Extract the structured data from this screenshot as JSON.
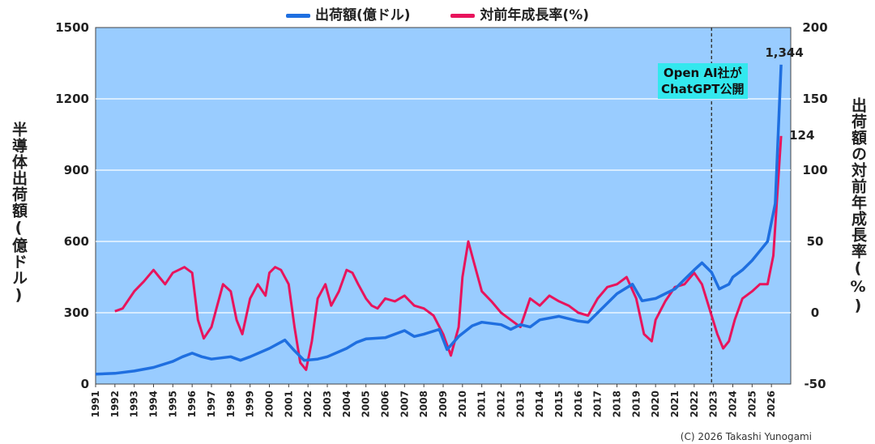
{
  "legend": {
    "series1": "出荷額(億ドル)",
    "series2": "対前年成長率(%)"
  },
  "axes": {
    "left_label": "半導体出荷額(億ドル)",
    "right_label": "出荷額の対前年成長率(%)"
  },
  "annotation": {
    "line1": "Open AI社が",
    "line2": "ChatGPT公開"
  },
  "credit": "(C) 2026 Takashi Yunogami",
  "colors": {
    "plot_bg": "#99ccff",
    "shipments": "#1f6fe0",
    "growth": "#e8145c",
    "neg_tick": "#e01010",
    "annotation_bg": "#33e8ee"
  },
  "chart_data": {
    "type": "line",
    "x_ticks": [
      "1991",
      "1992",
      "1993",
      "1994",
      "1995",
      "1996",
      "1997",
      "1998",
      "1999",
      "2000",
      "2001",
      "2002",
      "2003",
      "2004",
      "2005",
      "2006",
      "2007",
      "2008",
      "2009",
      "2010",
      "2011",
      "2012",
      "2013",
      "2014",
      "2015",
      "2016",
      "2017",
      "2018",
      "2019",
      "2020",
      "2021",
      "2022",
      "2023",
      "2024",
      "2025",
      "2026"
    ],
    "xlim": [
      1991,
      2027
    ],
    "y_left": {
      "ticks": [
        "0",
        "300",
        "600",
        "900",
        "1200",
        "1500"
      ],
      "ylim": [
        0,
        1500
      ]
    },
    "y_right": {
      "ticks": [
        "-50",
        "0",
        "50",
        "100",
        "150",
        "200"
      ],
      "ylim": [
        -50,
        200
      ]
    },
    "vertical_marker_year": 2022.9,
    "series": [
      {
        "name": "出荷額(億ドル)",
        "axis": "left",
        "x": [
          1991,
          1992,
          1993,
          1994,
          1995,
          1995.5,
          1996,
          1996.5,
          1997,
          1998,
          1998.5,
          1999,
          2000,
          2000.8,
          2001.3,
          2001.8,
          2002.5,
          2003,
          2004,
          2004.5,
          2005,
          2006,
          2007,
          2007.5,
          2008,
          2008.8,
          2009.2,
          2009.8,
          2010.5,
          2011,
          2012,
          2012.5,
          2013,
          2013.5,
          2014,
          2015,
          2016,
          2016.5,
          2017,
          2018,
          2018.8,
          2019.3,
          2020,
          2020.5,
          2021,
          2021.5,
          2022,
          2022.4,
          2022.9,
          2023.3,
          2023.8,
          2024,
          2024.5,
          2025,
          2025.4,
          2025.8,
          2026.2,
          2026.5
        ],
        "values": [
          42,
          45,
          55,
          70,
          95,
          115,
          130,
          115,
          105,
          115,
          100,
          115,
          150,
          185,
          140,
          100,
          105,
          115,
          150,
          175,
          190,
          195,
          225,
          200,
          210,
          230,
          145,
          200,
          245,
          260,
          250,
          230,
          250,
          240,
          270,
          285,
          265,
          260,
          300,
          380,
          420,
          350,
          360,
          380,
          400,
          440,
          480,
          510,
          470,
          400,
          420,
          450,
          480,
          520,
          560,
          600,
          760,
          1344
        ]
      },
      {
        "name": "対前年成長率(%)",
        "axis": "right",
        "x": [
          1992,
          1992.4,
          1993,
          1993.5,
          1994,
          1994.3,
          1994.6,
          1995,
          1995.3,
          1995.6,
          1996,
          1996.3,
          1996.6,
          1997,
          1997.3,
          1997.6,
          1998,
          1998.3,
          1998.6,
          1999,
          1999.4,
          1999.8,
          2000,
          2000.3,
          2000.6,
          2001,
          2001.3,
          2001.6,
          2001.9,
          2002.2,
          2002.5,
          2002.9,
          2003.2,
          2003.6,
          2004,
          2004.3,
          2004.6,
          2005,
          2005.3,
          2005.6,
          2006,
          2006.5,
          2007,
          2007.5,
          2008,
          2008.5,
          2009,
          2009.4,
          2009.8,
          2010,
          2010.3,
          2010.6,
          2011,
          2011.5,
          2012,
          2012.5,
          2013,
          2013.5,
          2014,
          2014.5,
          2015,
          2015.5,
          2016,
          2016.5,
          2017,
          2017.5,
          2018,
          2018.5,
          2019,
          2019.4,
          2019.8,
          2020,
          2020.5,
          2021,
          2021.5,
          2022,
          2022.4,
          2022.9,
          2023.2,
          2023.5,
          2023.8,
          2024.1,
          2024.5,
          2025,
          2025.4,
          2025.8,
          2026.1,
          2026.5
        ],
        "values": [
          1,
          3,
          15,
          22,
          30,
          25,
          20,
          28,
          30,
          32,
          28,
          -5,
          -18,
          -10,
          5,
          20,
          15,
          -5,
          -15,
          10,
          20,
          12,
          28,
          32,
          30,
          20,
          -10,
          -35,
          -40,
          -20,
          10,
          20,
          5,
          15,
          30,
          28,
          20,
          10,
          5,
          3,
          10,
          8,
          12,
          5,
          3,
          -2,
          -15,
          -30,
          -10,
          25,
          50,
          35,
          15,
          8,
          0,
          -5,
          -10,
          10,
          5,
          12,
          8,
          5,
          0,
          -2,
          10,
          18,
          20,
          25,
          10,
          -15,
          -20,
          -5,
          8,
          18,
          20,
          28,
          20,
          -2,
          -15,
          -25,
          -20,
          -5,
          10,
          15,
          20,
          20,
          40,
          124
        ]
      }
    ],
    "data_labels": [
      {
        "series": "出荷額(億ドル)",
        "text": "1,344"
      },
      {
        "series": "対前年成長率(%)",
        "text": "124"
      }
    ]
  }
}
